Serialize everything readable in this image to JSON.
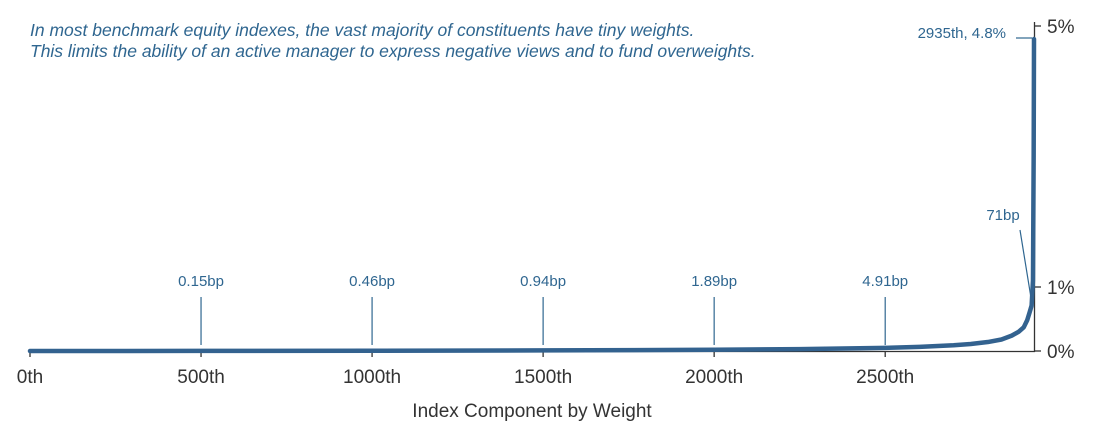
{
  "annotation": {
    "line1": "In most benchmark equity indexes, the vast majority of constituents have tiny weights.",
    "line2": "This limits the ability of an active manager to express negative views and to fund overweights."
  },
  "colors": {
    "series": "#33628f",
    "text": "#2f6690",
    "axis": "#333333"
  },
  "chart_data": {
    "type": "line",
    "title": "",
    "xlabel": "Index Component by Weight",
    "ylabel": "",
    "xlim": [
      0,
      2935
    ],
    "ylim": [
      0,
      5
    ],
    "x_unit": "rank",
    "y_unit": "percent",
    "x_ticks": [
      {
        "value": 0,
        "label": "0th"
      },
      {
        "value": 500,
        "label": "500th"
      },
      {
        "value": 1000,
        "label": "1000th"
      },
      {
        "value": 1500,
        "label": "1500th"
      },
      {
        "value": 2000,
        "label": "2000th"
      },
      {
        "value": 2500,
        "label": "2500th"
      }
    ],
    "y_ticks": [
      {
        "value": 0,
        "label": "0%"
      },
      {
        "value": 1,
        "label": "1%"
      },
      {
        "value": 5,
        "label": "5%"
      }
    ],
    "series": [
      {
        "x": [
          0,
          500,
          1000,
          1500,
          2000,
          2250,
          2500,
          2600,
          2700,
          2750,
          2800,
          2840,
          2870,
          2890,
          2905,
          2915,
          2922,
          2928,
          2932,
          2934,
          2935
        ],
        "y": [
          0.0,
          0.0015,
          0.0046,
          0.0094,
          0.0189,
          0.03,
          0.0491,
          0.065,
          0.09,
          0.11,
          0.14,
          0.18,
          0.24,
          0.3,
          0.37,
          0.48,
          0.6,
          0.71,
          1.1,
          3.0,
          4.8
        ]
      }
    ],
    "annotations": [
      {
        "x": 500,
        "label": "0.15bp"
      },
      {
        "x": 1000,
        "label": "0.46bp"
      },
      {
        "x": 1500,
        "label": "0.94bp"
      },
      {
        "x": 2000,
        "label": "1.89bp"
      },
      {
        "x": 2500,
        "label": "4.91bp"
      },
      {
        "x": 2928,
        "y": 0.71,
        "label": "71bp"
      },
      {
        "x": 2935,
        "y": 4.8,
        "label": "2935th, 4.8%"
      }
    ],
    "grid": false,
    "legend": "none"
  }
}
